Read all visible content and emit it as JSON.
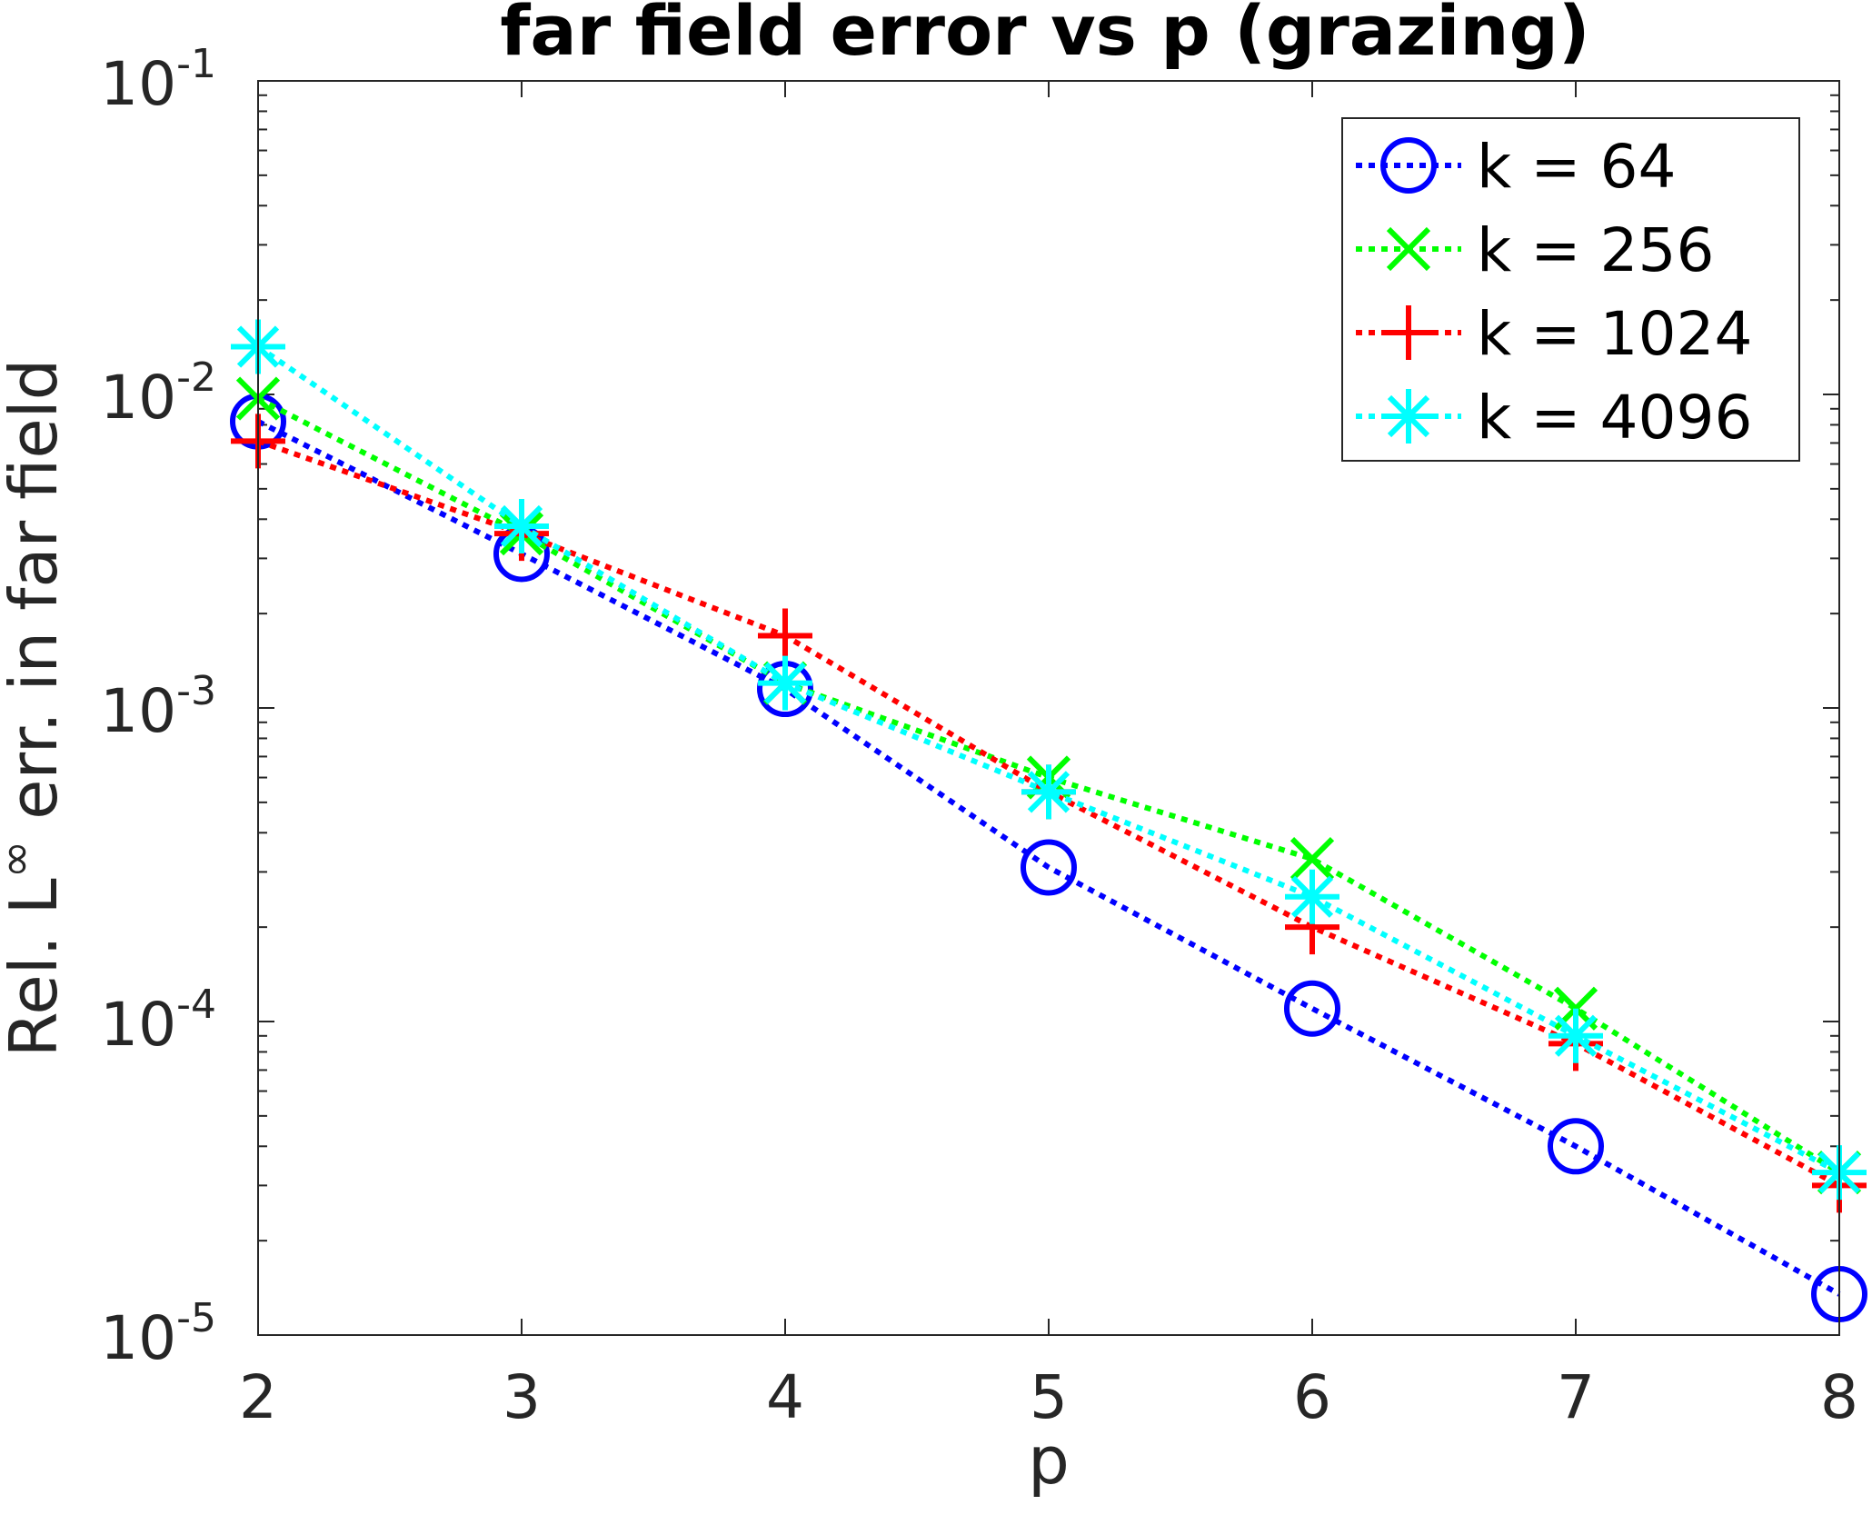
{
  "chart_data": {
    "type": "line",
    "title": "far field error vs p (grazing)",
    "xlabel": "p",
    "ylabel": {
      "prefix": "Rel. L",
      "superscript": "∞",
      "suffix": " err. in far field"
    },
    "yscale": "log",
    "xlim": [
      2,
      8
    ],
    "ylim": [
      1e-05,
      0.1
    ],
    "x_ticks": [
      "2",
      "3",
      "4",
      "5",
      "6",
      "7",
      "8"
    ],
    "y_ticks": [
      {
        "base": "10",
        "exp": "-5"
      },
      {
        "base": "10",
        "exp": "-4"
      },
      {
        "base": "10",
        "exp": "-3"
      },
      {
        "base": "10",
        "exp": "-2"
      },
      {
        "base": "10",
        "exp": "-1"
      }
    ],
    "legend_position": "top-right",
    "grid": false,
    "x": [
      2,
      3,
      4,
      5,
      6,
      7,
      8
    ],
    "series": [
      {
        "name": "k = 64",
        "color": "#0000ff",
        "marker": "circle",
        "values": [
          0.0082,
          0.0031,
          0.00115,
          0.00031,
          0.00011,
          4e-05,
          1.35e-05
        ]
      },
      {
        "name": "k = 256",
        "color": "#00ff00",
        "marker": "x",
        "values": [
          0.0097,
          0.0036,
          0.0012,
          0.0006,
          0.00033,
          0.00011,
          3.3e-05
        ]
      },
      {
        "name": "k = 1024",
        "color": "#ff0000",
        "marker": "plus",
        "values": [
          0.0071,
          0.0036,
          0.0017,
          0.00054,
          0.0002,
          8.5e-05,
          3e-05
        ]
      },
      {
        "name": "k = 4096",
        "color": "#00ffff",
        "marker": "asterisk",
        "values": [
          0.0142,
          0.0038,
          0.0012,
          0.00054,
          0.00025,
          9e-05,
          3.3e-05
        ]
      }
    ]
  }
}
